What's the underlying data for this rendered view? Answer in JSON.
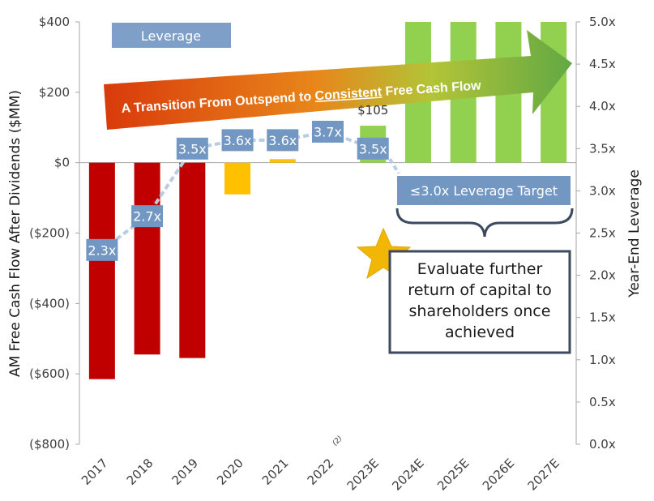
{
  "chart_data": {
    "type": "bar",
    "categories": [
      "2017",
      "2018",
      "2019",
      "2020",
      "2021",
      "2022",
      "2023E",
      "2024E",
      "2025E",
      "2026E",
      "2027E"
    ],
    "category_superscripts": {
      "2022": "(2)"
    },
    "series": [
      {
        "values": [
          -615,
          -545,
          -555,
          -90,
          10,
          0,
          105,
          400,
          400,
          400,
          400
        ],
        "colors": [
          "#c00000",
          "#c00000",
          "#c00000",
          "#ffc000",
          "#ffc000",
          "#ffc000",
          "#92d050",
          "#92d050",
          "#92d050",
          "#92d050",
          "#92d050"
        ]
      },
      {
        "name": "Leverage",
        "type": "line",
        "axis": "right",
        "x": [
          "2017",
          "2018",
          "2019",
          "2020",
          "2021",
          "2022",
          "2023E"
        ],
        "values": [
          2.3,
          2.7,
          3.5,
          3.6,
          3.6,
          3.7,
          3.5
        ],
        "labels": [
          "2.3x",
          "2.7x",
          "3.5x",
          "3.6x",
          "3.6x",
          "3.7x",
          "3.5x"
        ],
        "color": "#b8cce4",
        "label_color": "#7397c3"
      }
    ],
    "bar_data_labels": {
      "2023E": "$105"
    },
    "ylabel": "AM Free Cash Flow After Dividends ($MM)",
    "ylim": [
      -800,
      400
    ],
    "yticks": [
      400,
      200,
      0,
      -200,
      -400,
      -600,
      -800
    ],
    "ytick_labels": [
      "$400",
      "$200",
      "$0",
      "($200)",
      "($400)",
      "($600)",
      "($800)"
    ],
    "y2label": "Year-End Leverage",
    "y2lim": [
      0,
      5
    ],
    "y2ticks": [
      5.0,
      4.5,
      4.0,
      3.5,
      3.0,
      2.5,
      2.0,
      1.5,
      1.0,
      0.5,
      0.0
    ],
    "y2tick_labels": [
      "5.0x",
      "4.5x",
      "4.0x",
      "3.5x",
      "3.0x",
      "2.5x",
      "2.0x",
      "1.5x",
      "1.0x",
      "0.5x",
      "0.0x"
    ],
    "legend": {
      "label": "Leverage",
      "placement": "top-left"
    },
    "grid": false,
    "annotations": {
      "arrow_text_before": "A Transition From Outspend to ",
      "arrow_text_emphasis": "Consistent",
      "arrow_text_after": " Free Cash Flow",
      "target_badge": "≤3.0x Leverage Target",
      "note_lines": [
        "Evaluate further",
        "return of capital to",
        "shareholders once",
        "achieved"
      ]
    },
    "colors": {
      "negative": "#c00000",
      "transition": "#ffc000",
      "positive": "#92d050",
      "leverage_box": "#7397c3",
      "note_border": "#3b4a5e",
      "star": "#f2b705",
      "arrow_start": "#d63a0a",
      "arrow_end": "#70ad47"
    }
  }
}
